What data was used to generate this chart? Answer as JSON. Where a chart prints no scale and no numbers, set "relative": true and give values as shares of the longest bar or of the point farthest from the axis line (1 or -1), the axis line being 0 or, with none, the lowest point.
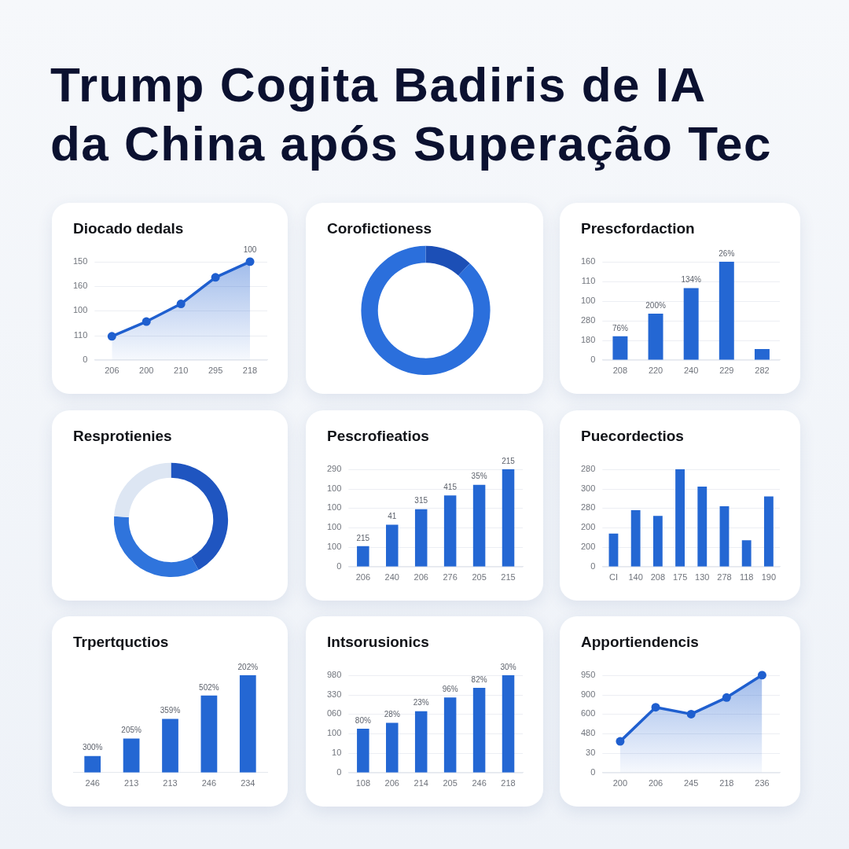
{
  "chart_data": [
    {
      "type": "other",
      "title": "Trump Cogita Badiris de IA da China após Superação Tec"
    },
    {
      "type": "area",
      "title": "Diocado dedals",
      "categories": [
        "206",
        "200",
        "210",
        "295",
        "218"
      ],
      "values": [
        0.24,
        0.39,
        0.57,
        0.84,
        1
      ],
      "color": "#1f5fcf",
      "relative": true,
      "grid": "y",
      "marker": "circle",
      "annotations": [
        "150",
        "160",
        "100",
        "110",
        "0",
        {
          "text": "100",
          "x": "218",
          "y": 1
        }
      ]
    },
    {
      "type": "donut",
      "title": "Corofictioness",
      "categories": [
        null,
        null
      ],
      "values": [
        12,
        88
      ],
      "colors": [
        "#1c4fb6",
        "#2b6fdc"
      ]
    },
    {
      "type": "bar",
      "title": "Prescfordaction",
      "categories": [
        "208",
        "220",
        "240",
        "229",
        "282"
      ],
      "values": [
        0.24,
        0.47,
        0.73,
        1,
        0.11
      ],
      "color": "#2467d3",
      "relative": true,
      "grid": "y",
      "annotations": [
        "160",
        "110",
        "100",
        "280",
        "180",
        "0",
        {
          "text": "76%",
          "x": "208",
          "y": 0.24
        },
        {
          "text": "200%",
          "x": "220",
          "y": 0.47
        },
        {
          "text": "134%",
          "x": "240",
          "y": 0.73
        },
        {
          "text": "26%",
          "x": "229",
          "y": 1
        }
      ]
    },
    {
      "type": "donut",
      "title": "Resprotienies",
      "categories": [
        null,
        null,
        null
      ],
      "values": [
        42,
        34,
        24
      ],
      "colors": [
        "#1f55c0",
        "#2f74dc",
        "#dde6f3"
      ]
    },
    {
      "type": "bar",
      "title": "Pescrofieatios",
      "categories": [
        "206",
        "240",
        "206",
        "276",
        "205",
        "215"
      ],
      "values": [
        0.21,
        0.43,
        0.59,
        0.73,
        0.84,
        1
      ],
      "color": "#2467d3",
      "relative": true,
      "grid": "y",
      "annotations": [
        "290",
        "100",
        "100",
        "100",
        "100",
        "0",
        {
          "text": "215",
          "x": "206",
          "y": 0.21
        },
        {
          "text": "41",
          "x": "240",
          "y": 0.43
        },
        {
          "text": "315",
          "y": 0.59
        },
        {
          "text": "415",
          "x": "276",
          "y": 0.73
        },
        {
          "text": "35%",
          "x": "205",
          "y": 0.84
        },
        {
          "text": "215",
          "x": "215",
          "y": 1
        }
      ]
    },
    {
      "type": "bar",
      "title": "Puecordectios",
      "categories": [
        "CI",
        "140",
        "208",
        "175",
        "130",
        "278",
        "118",
        "190"
      ],
      "values": [
        0.34,
        0.58,
        0.52,
        1,
        0.82,
        0.62,
        0.27,
        0.72
      ],
      "color": "#2467d3",
      "relative": true,
      "grid": "y",
      "annotations": [
        "280",
        "300",
        "280",
        "200",
        "200",
        "0"
      ]
    },
    {
      "type": "bar",
      "title": "Trpertquctios",
      "categories": [
        "246",
        "213",
        "213",
        "246",
        "234"
      ],
      "values": [
        0.17,
        0.35,
        0.55,
        0.79,
        1
      ],
      "color": "#2467d3",
      "relative": true,
      "annotations": [
        {
          "text": "300%",
          "x": "246",
          "y": 0.17
        },
        {
          "text": "205%",
          "x": "213",
          "y": 0.35
        },
        {
          "text": "359%",
          "y": 0.55
        },
        {
          "text": "502%",
          "y": 0.79
        },
        {
          "text": "202%",
          "x": "234",
          "y": 1
        }
      ]
    },
    {
      "type": "bar",
      "title": "Intsorusionics",
      "categories": [
        "108",
        "206",
        "214",
        "205",
        "246",
        "218"
      ],
      "values": [
        0.45,
        0.51,
        0.63,
        0.77,
        0.87,
        1
      ],
      "color": "#2467d3",
      "relative": true,
      "grid": "y",
      "annotations": [
        "980",
        "330",
        "060",
        "100",
        "10",
        "0",
        {
          "text": "80%",
          "x": "108",
          "y": 0.45
        },
        {
          "text": "28%",
          "x": "206",
          "y": 0.51
        },
        {
          "text": "23%",
          "x": "214",
          "y": 0.63
        },
        {
          "text": "96%",
          "x": "205",
          "y": 0.77
        },
        {
          "text": "82%",
          "x": "246",
          "y": 0.87
        },
        {
          "text": "30%",
          "x": "218",
          "y": 1
        }
      ]
    },
    {
      "type": "area",
      "title": "Apportiendencis",
      "categories": [
        "200",
        "206",
        "245",
        "218",
        "236"
      ],
      "values": [
        0.32,
        0.67,
        0.6,
        0.77,
        1
      ],
      "color": "#1f5fcf",
      "relative": true,
      "grid": "y",
      "marker": "circle",
      "annotations": [
        "950",
        "900",
        "600",
        "480",
        "30",
        "0"
      ]
    }
  ]
}
